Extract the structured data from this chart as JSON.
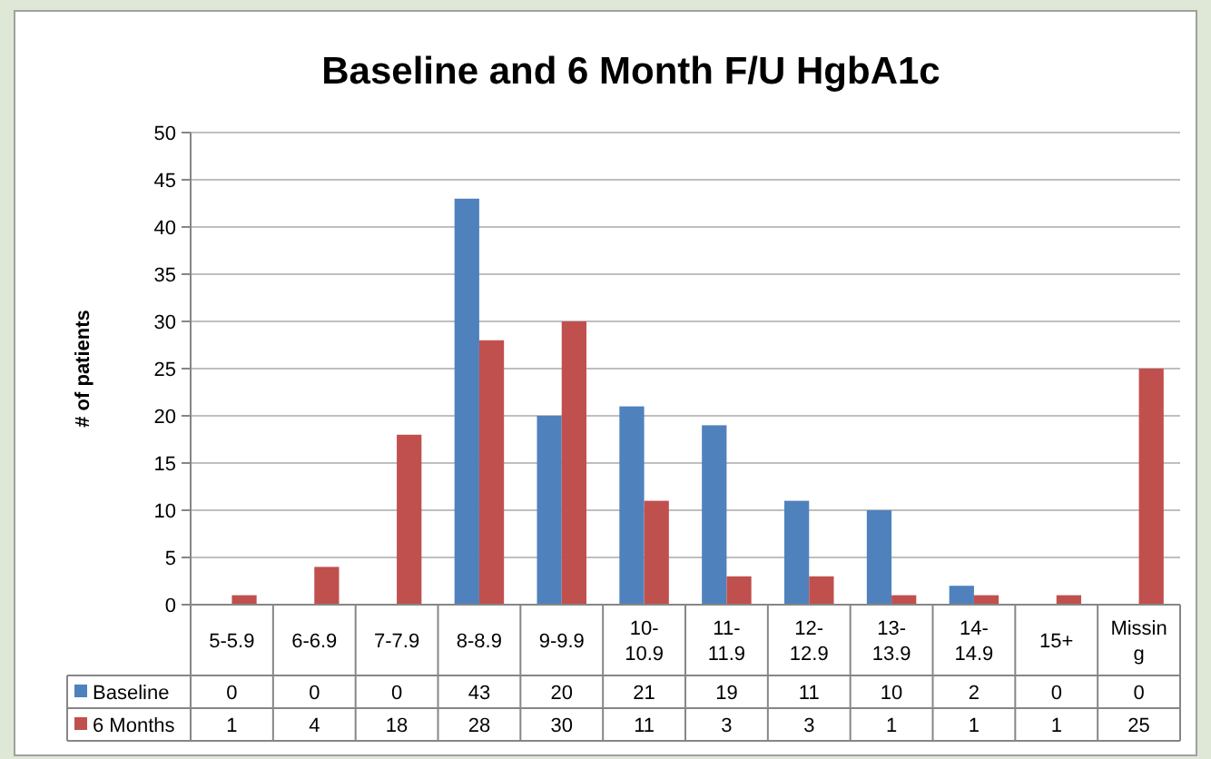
{
  "chart_data": {
    "type": "bar",
    "title": "Baseline and 6 Month F/U HgbA1c",
    "ylabel": "# of patients",
    "categories": [
      "5-5.9",
      "6-6.9",
      "7-7.9",
      "8-8.9",
      "9-9.9",
      "10-10.9",
      "11-11.9",
      "12-12.9",
      "13-13.9",
      "14-14.9",
      "15+",
      "Missing"
    ],
    "series": [
      {
        "name": "Baseline",
        "color": "#4f81bd",
        "values": [
          0,
          0,
          0,
          43,
          20,
          21,
          19,
          11,
          10,
          2,
          0,
          0
        ]
      },
      {
        "name": "6 Months",
        "color": "#c0504d",
        "values": [
          1,
          4,
          18,
          28,
          30,
          11,
          3,
          3,
          1,
          1,
          1,
          25
        ]
      }
    ],
    "ylim": [
      0,
      50
    ],
    "yticks": [
      0,
      5,
      10,
      15,
      20,
      25,
      30,
      35,
      40,
      45,
      50
    ],
    "grid": "y",
    "legend": "bottom",
    "data_labels": true
  }
}
